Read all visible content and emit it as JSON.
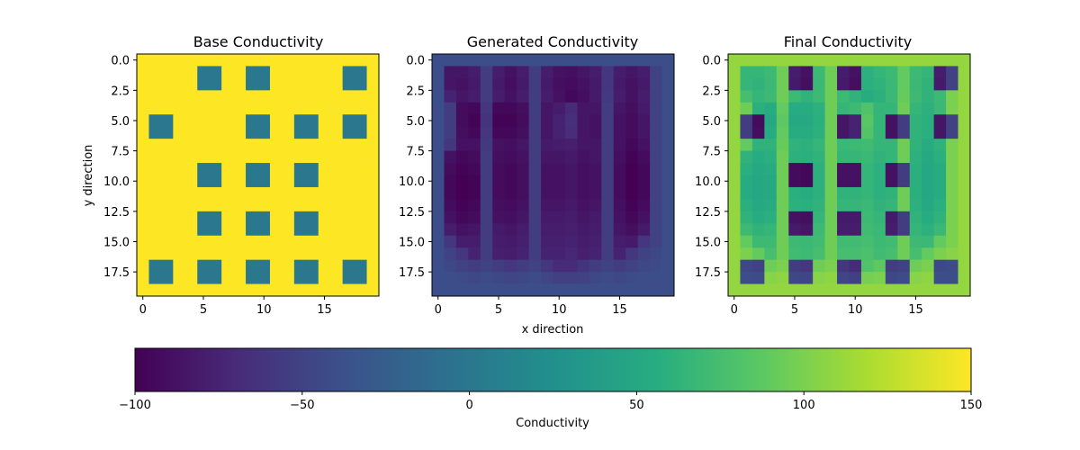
{
  "chart_data": {
    "type": "heatmap",
    "colormap": "viridis",
    "grid": false,
    "xlabel": "x direction",
    "ylabel": "y direction",
    "x_ticks": [
      "0",
      "5",
      "10",
      "15"
    ],
    "y_ticks": [
      "0.0",
      "2.5",
      "5.0",
      "7.5",
      "10.0",
      "12.5",
      "15.0",
      "17.5"
    ],
    "x_range": [
      -0.5,
      19.5
    ],
    "y_range": [
      19.5,
      -0.5
    ],
    "panels": [
      {
        "title": "Base Conductivity",
        "background_value": 150,
        "inclusion_value": 0,
        "inclusion_size": 2,
        "inclusions": [
          [
            5,
            1
          ],
          [
            9,
            1
          ],
          [
            17,
            1
          ],
          [
            1,
            5
          ],
          [
            9,
            5
          ],
          [
            13,
            5
          ],
          [
            17,
            5
          ],
          [
            5,
            9
          ],
          [
            9,
            9
          ],
          [
            13,
            9
          ],
          [
            5,
            13
          ],
          [
            9,
            13
          ],
          [
            13,
            13
          ],
          [
            1,
            17
          ],
          [
            5,
            17
          ],
          [
            9,
            17
          ],
          [
            13,
            17
          ],
          [
            17,
            17
          ]
        ]
      },
      {
        "title": "Generated Conductivity",
        "grid_values": [
          [
            -40,
            -40,
            -40,
            -40,
            -40,
            -40,
            -40,
            -40,
            -40,
            -40,
            -40,
            -40,
            -40,
            -40,
            -40,
            -40,
            -40,
            -40,
            -40,
            -40
          ],
          [
            -40,
            -85,
            -85,
            -80,
            -55,
            -80,
            -88,
            -80,
            -55,
            -80,
            -88,
            -90,
            -85,
            -80,
            -60,
            -80,
            -85,
            -80,
            -50,
            -40
          ],
          [
            -40,
            -85,
            -88,
            -82,
            -55,
            -82,
            -90,
            -82,
            -55,
            -82,
            -90,
            -92,
            -88,
            -82,
            -60,
            -82,
            -88,
            -82,
            -50,
            -40
          ],
          [
            -40,
            -75,
            -85,
            -80,
            -55,
            -80,
            -88,
            -80,
            -55,
            -80,
            -88,
            -95,
            -90,
            -82,
            -58,
            -80,
            -88,
            -80,
            -50,
            -40
          ],
          [
            -40,
            -55,
            -92,
            -95,
            -60,
            -95,
            -95,
            -90,
            -55,
            -85,
            -80,
            -70,
            -85,
            -85,
            -55,
            -85,
            -90,
            -82,
            -50,
            -40
          ],
          [
            -40,
            -55,
            -92,
            -98,
            -62,
            -98,
            -98,
            -92,
            -55,
            -85,
            -75,
            -65,
            -85,
            -88,
            -55,
            -88,
            -92,
            -85,
            -50,
            -40
          ],
          [
            -40,
            -55,
            -90,
            -95,
            -60,
            -95,
            -95,
            -90,
            -55,
            -85,
            -75,
            -68,
            -85,
            -88,
            -55,
            -88,
            -92,
            -85,
            -50,
            -40
          ],
          [
            -40,
            -60,
            -88,
            -88,
            -58,
            -88,
            -90,
            -85,
            -55,
            -82,
            -80,
            -78,
            -85,
            -85,
            -55,
            -88,
            -95,
            -88,
            -50,
            -40
          ],
          [
            -40,
            -88,
            -95,
            -92,
            -55,
            -90,
            -92,
            -88,
            -55,
            -85,
            -85,
            -82,
            -88,
            -85,
            -55,
            -90,
            -98,
            -92,
            -50,
            -40
          ],
          [
            -40,
            -92,
            -98,
            -95,
            -55,
            -92,
            -95,
            -90,
            -55,
            -88,
            -88,
            -85,
            -90,
            -88,
            -55,
            -92,
            -100,
            -95,
            -50,
            -40
          ],
          [
            -40,
            -95,
            -100,
            -98,
            -55,
            -92,
            -95,
            -90,
            -55,
            -88,
            -88,
            -85,
            -90,
            -88,
            -55,
            -92,
            -100,
            -95,
            -50,
            -40
          ],
          [
            -40,
            -95,
            -100,
            -98,
            -55,
            -92,
            -95,
            -90,
            -55,
            -88,
            -88,
            -85,
            -90,
            -88,
            -55,
            -92,
            -100,
            -95,
            -50,
            -40
          ],
          [
            -40,
            -92,
            -98,
            -95,
            -55,
            -90,
            -92,
            -88,
            -55,
            -85,
            -85,
            -82,
            -88,
            -85,
            -55,
            -90,
            -98,
            -92,
            -50,
            -40
          ],
          [
            -40,
            -88,
            -95,
            -92,
            -55,
            -88,
            -90,
            -85,
            -55,
            -82,
            -82,
            -80,
            -85,
            -82,
            -55,
            -88,
            -95,
            -88,
            -50,
            -40
          ],
          [
            -40,
            -80,
            -88,
            -85,
            -55,
            -82,
            -85,
            -80,
            -55,
            -80,
            -80,
            -78,
            -82,
            -80,
            -55,
            -85,
            -90,
            -82,
            -50,
            -40
          ],
          [
            -40,
            -60,
            -80,
            -80,
            -55,
            -80,
            -82,
            -78,
            -55,
            -78,
            -78,
            -75,
            -80,
            -78,
            -55,
            -80,
            -82,
            -60,
            -50,
            -40
          ],
          [
            -40,
            -50,
            -60,
            -75,
            -55,
            -78,
            -80,
            -75,
            -55,
            -75,
            -75,
            -72,
            -78,
            -75,
            -55,
            -75,
            -60,
            -50,
            -45,
            -40
          ],
          [
            -40,
            -45,
            -50,
            -55,
            -50,
            -55,
            -60,
            -55,
            -50,
            -60,
            -70,
            -70,
            -62,
            -55,
            -50,
            -55,
            -50,
            -45,
            -42,
            -40
          ],
          [
            -40,
            -40,
            -42,
            -45,
            -42,
            -45,
            -48,
            -45,
            -42,
            -48,
            -52,
            -52,
            -50,
            -45,
            -42,
            -45,
            -42,
            -40,
            -40,
            -40
          ],
          [
            -40,
            -40,
            -40,
            -40,
            -40,
            -40,
            -40,
            -40,
            -40,
            -40,
            -40,
            -40,
            -40,
            -40,
            -40,
            -40,
            -40,
            -40,
            -40,
            -40
          ]
        ]
      },
      {
        "title": "Final Conductivity",
        "note_rule": "final = base + generated"
      }
    ],
    "colorbar": {
      "label": "Conductivity",
      "orientation": "horizontal",
      "range": [
        -100,
        150
      ],
      "ticks": [
        "−100",
        "−50",
        "0",
        "50",
        "100",
        "150"
      ],
      "tick_values": [
        -100,
        -50,
        0,
        50,
        100,
        150
      ]
    }
  }
}
